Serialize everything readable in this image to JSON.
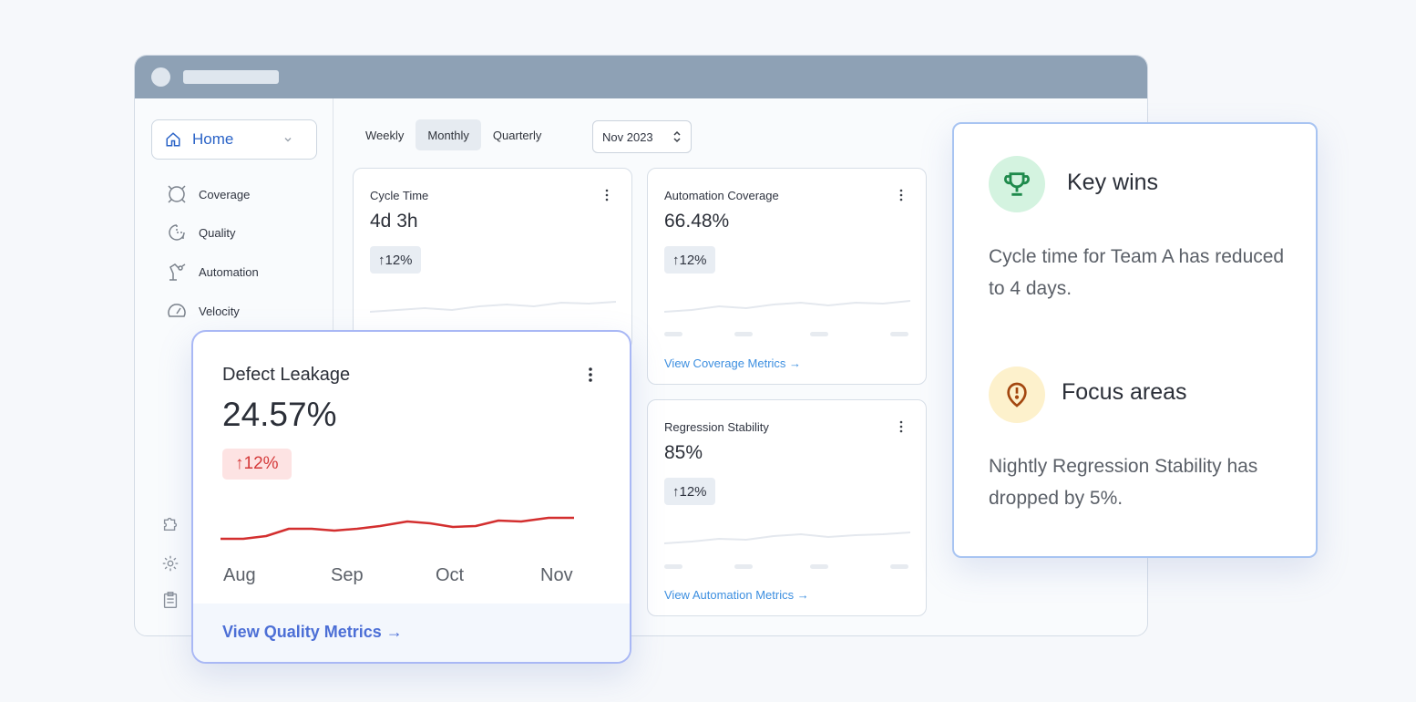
{
  "sidebar": {
    "home": "Home",
    "items": [
      {
        "label": "Coverage",
        "icon": "coverage-icon"
      },
      {
        "label": "Quality",
        "icon": "quality-icon"
      },
      {
        "label": "Automation",
        "icon": "automation-icon"
      },
      {
        "label": "Velocity",
        "icon": "velocity-icon"
      }
    ]
  },
  "toolbar": {
    "tabs": [
      "Weekly",
      "Monthly",
      "Quarterly"
    ],
    "active_tab": "Monthly",
    "date": "Nov 2023"
  },
  "cards": {
    "cycle_time": {
      "title": "Cycle Time",
      "value": "4d 3h",
      "change": "12%"
    },
    "automation_coverage": {
      "title": "Automation Coverage",
      "value": "66.48%",
      "change": "12%",
      "link": "View Coverage Metrics →"
    },
    "regression_stability": {
      "title": "Regression Stability",
      "value": "85%",
      "change": "12%",
      "link": "View Automation Metrics →"
    }
  },
  "defect": {
    "title": "Defect Leakage",
    "value": "24.57%",
    "change": "12%",
    "months": [
      "Aug",
      "Sep",
      "Oct",
      "Nov"
    ],
    "link": "View Quality Metrics →",
    "line_color": "#d32f2f"
  },
  "insights": {
    "wins": {
      "title": "Key wins",
      "text": "Cycle time for Team A has reduced to 4 days.",
      "icon": "trophy-icon"
    },
    "focus": {
      "title": "Focus areas",
      "text": "Nightly Regression Stability has dropped by 5%.",
      "icon": "alert-icon"
    }
  }
}
